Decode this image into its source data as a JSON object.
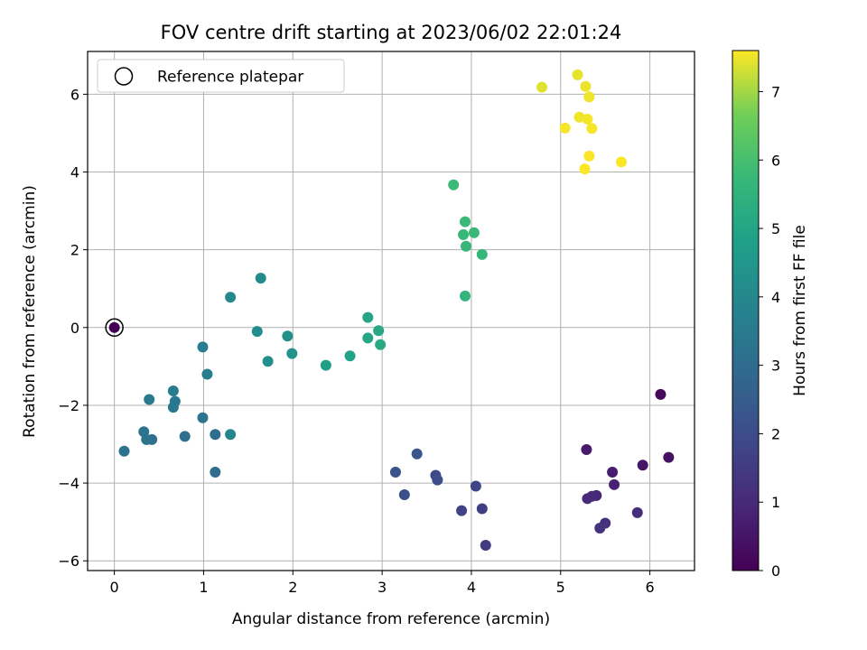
{
  "chart_data": {
    "type": "scatter",
    "title": "FOV centre drift starting at 2023/06/02 22:01:24",
    "xlabel": "Angular distance from reference (arcmin)",
    "ylabel": "Rotation from reference (arcmin)",
    "xlim": [
      -0.3,
      6.5
    ],
    "ylim": [
      -6.25,
      7.1
    ],
    "xticks": [
      0,
      1,
      2,
      3,
      4,
      5,
      6
    ],
    "yticks": [
      -6,
      -4,
      -2,
      0,
      2,
      4,
      6
    ],
    "xtick_labels": [
      "0",
      "1",
      "2",
      "3",
      "4",
      "5",
      "6"
    ],
    "ytick_labels": [
      "−6",
      "−4",
      "−2",
      "0",
      "2",
      "4",
      "6"
    ],
    "grid": true,
    "legend": {
      "location": "upper-left",
      "entries": [
        "Reference platepar"
      ]
    },
    "reference_point": {
      "x": 0,
      "y": 0
    },
    "colorbar": {
      "label": "Hours from first FF file",
      "range": [
        0,
        7.6
      ],
      "ticks": [
        0,
        1,
        2,
        3,
        4,
        5,
        6,
        7
      ],
      "tick_labels": [
        "0",
        "1",
        "2",
        "3",
        "4",
        "5",
        "6",
        "7"
      ],
      "colormap": "viridis"
    },
    "points": [
      {
        "x": 0.0,
        "y": 0.0,
        "h": 0.0
      },
      {
        "x": 6.12,
        "y": -1.72,
        "h": 0.2
      },
      {
        "x": 6.21,
        "y": -3.34,
        "h": 0.4
      },
      {
        "x": 5.92,
        "y": -3.54,
        "h": 0.5
      },
      {
        "x": 5.29,
        "y": -3.14,
        "h": 0.6
      },
      {
        "x": 5.58,
        "y": -3.72,
        "h": 0.7
      },
      {
        "x": 5.6,
        "y": -4.04,
        "h": 0.8
      },
      {
        "x": 5.4,
        "y": -4.32,
        "h": 0.9
      },
      {
        "x": 5.35,
        "y": -4.34,
        "h": 1.0
      },
      {
        "x": 5.3,
        "y": -4.4,
        "h": 1.05
      },
      {
        "x": 5.86,
        "y": -4.76,
        "h": 1.1
      },
      {
        "x": 5.5,
        "y": -5.03,
        "h": 1.2
      },
      {
        "x": 5.44,
        "y": -5.16,
        "h": 1.3
      },
      {
        "x": 4.16,
        "y": -5.6,
        "h": 1.5
      },
      {
        "x": 4.12,
        "y": -4.66,
        "h": 1.6
      },
      {
        "x": 3.89,
        "y": -4.71,
        "h": 1.7
      },
      {
        "x": 4.05,
        "y": -4.08,
        "h": 1.8
      },
      {
        "x": 3.6,
        "y": -3.8,
        "h": 1.9
      },
      {
        "x": 3.62,
        "y": -3.92,
        "h": 2.0
      },
      {
        "x": 3.25,
        "y": -4.3,
        "h": 2.1
      },
      {
        "x": 3.15,
        "y": -3.72,
        "h": 2.2
      },
      {
        "x": 3.39,
        "y": -3.25,
        "h": 2.3
      },
      {
        "x": 1.13,
        "y": -3.72,
        "h": 3.0
      },
      {
        "x": 1.13,
        "y": -2.75,
        "h": 3.05
      },
      {
        "x": 0.79,
        "y": -2.8,
        "h": 3.1
      },
      {
        "x": 0.42,
        "y": -2.88,
        "h": 3.15
      },
      {
        "x": 0.36,
        "y": -2.88,
        "h": 3.2
      },
      {
        "x": 0.33,
        "y": -2.68,
        "h": 3.25
      },
      {
        "x": 0.11,
        "y": -3.18,
        "h": 3.3
      },
      {
        "x": 0.99,
        "y": -2.32,
        "h": 3.35
      },
      {
        "x": 0.66,
        "y": -2.05,
        "h": 3.4
      },
      {
        "x": 0.68,
        "y": -1.9,
        "h": 3.45
      },
      {
        "x": 0.39,
        "y": -1.85,
        "h": 3.5
      },
      {
        "x": 0.66,
        "y": -1.63,
        "h": 3.55
      },
      {
        "x": 1.04,
        "y": -1.2,
        "h": 3.6
      },
      {
        "x": 0.99,
        "y": -0.5,
        "h": 3.65
      },
      {
        "x": 1.3,
        "y": -2.75,
        "h": 3.9
      },
      {
        "x": 1.3,
        "y": 0.78,
        "h": 4.0
      },
      {
        "x": 1.64,
        "y": 1.27,
        "h": 4.1
      },
      {
        "x": 1.6,
        "y": -0.1,
        "h": 4.15
      },
      {
        "x": 1.72,
        "y": -0.87,
        "h": 4.25
      },
      {
        "x": 1.94,
        "y": -0.22,
        "h": 4.3
      },
      {
        "x": 1.99,
        "y": -0.67,
        "h": 4.35
      },
      {
        "x": 2.37,
        "y": -0.97,
        "h": 4.8
      },
      {
        "x": 2.64,
        "y": -0.73,
        "h": 4.9
      },
      {
        "x": 2.84,
        "y": 0.26,
        "h": 5.0
      },
      {
        "x": 2.84,
        "y": -0.27,
        "h": 5.05
      },
      {
        "x": 2.96,
        "y": -0.08,
        "h": 5.1
      },
      {
        "x": 2.98,
        "y": -0.44,
        "h": 5.15
      },
      {
        "x": 3.93,
        "y": 0.81,
        "h": 5.6
      },
      {
        "x": 4.12,
        "y": 1.88,
        "h": 5.7
      },
      {
        "x": 3.94,
        "y": 2.09,
        "h": 5.72
      },
      {
        "x": 3.91,
        "y": 2.39,
        "h": 5.74
      },
      {
        "x": 4.03,
        "y": 2.44,
        "h": 5.76
      },
      {
        "x": 3.93,
        "y": 2.72,
        "h": 5.78
      },
      {
        "x": 3.8,
        "y": 3.67,
        "h": 5.8
      },
      {
        "x": 4.79,
        "y": 6.18,
        "h": 7.4
      },
      {
        "x": 5.19,
        "y": 6.5,
        "h": 7.45
      },
      {
        "x": 5.28,
        "y": 6.2,
        "h": 7.48
      },
      {
        "x": 5.32,
        "y": 5.93,
        "h": 7.5
      },
      {
        "x": 5.21,
        "y": 5.41,
        "h": 7.52
      },
      {
        "x": 5.3,
        "y": 5.36,
        "h": 7.54
      },
      {
        "x": 5.35,
        "y": 5.12,
        "h": 7.55
      },
      {
        "x": 5.05,
        "y": 5.13,
        "h": 7.56
      },
      {
        "x": 5.32,
        "y": 4.41,
        "h": 7.57
      },
      {
        "x": 5.68,
        "y": 4.26,
        "h": 7.58
      },
      {
        "x": 5.27,
        "y": 4.08,
        "h": 7.6
      }
    ]
  }
}
